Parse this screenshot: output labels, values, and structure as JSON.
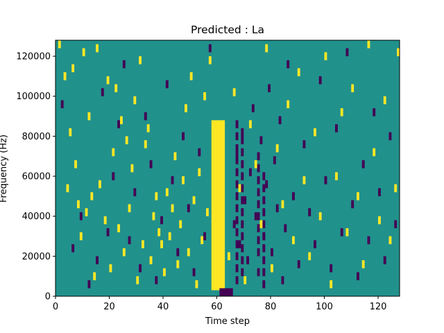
{
  "chart_data": {
    "type": "heatmap",
    "title": "Predicted : La",
    "xlabel": "Time step",
    "ylabel": "Frequency (Hz)",
    "xlim": [
      0,
      128
    ],
    "ylim": [
      0,
      128000
    ],
    "x_ticks": [
      0,
      20,
      40,
      60,
      80,
      100,
      120
    ],
    "y_ticks": [
      0,
      20000,
      40000,
      60000,
      80000,
      100000,
      120000
    ],
    "x_tick_labels": [
      "0",
      "20",
      "40",
      "60",
      "80",
      "100",
      "120"
    ],
    "y_tick_labels": [
      "0",
      "20000",
      "40000",
      "60000",
      "80000",
      "100000",
      "120000"
    ],
    "grid": false,
    "colormap": "viridis",
    "value_levels": [
      -1,
      0,
      1
    ],
    "colors": {
      "low": "#440154",
      "mid": "#21918c",
      "high": "#fde725"
    },
    "background_value": 0,
    "yellow_band": {
      "x_start": 58,
      "x_end": 63,
      "y_start": 3000,
      "y_end": 88000
    },
    "dark_band_bottom": {
      "x_start": 61,
      "x_end": 66,
      "y_start": 0,
      "y_end": 4000
    },
    "scattered_high_cells": [
      [
        1,
        126000
      ],
      [
        3,
        110000
      ],
      [
        4,
        54000
      ],
      [
        5,
        82000
      ],
      [
        6,
        114000
      ],
      [
        7,
        66000
      ],
      [
        8,
        46000
      ],
      [
        9,
        30000
      ],
      [
        10,
        122000
      ],
      [
        11,
        42000
      ],
      [
        12,
        90000
      ],
      [
        13,
        50000
      ],
      [
        14,
        10000
      ],
      [
        15,
        124000
      ],
      [
        16,
        56000
      ],
      [
        18,
        38000
      ],
      [
        19,
        108000
      ],
      [
        20,
        14000
      ],
      [
        21,
        72000
      ],
      [
        22,
        104000
      ],
      [
        23,
        34000
      ],
      [
        24,
        88000
      ],
      [
        25,
        22000
      ],
      [
        26,
        78000
      ],
      [
        27,
        44000
      ],
      [
        28,
        64000
      ],
      [
        29,
        98000
      ],
      [
        30,
        8000
      ],
      [
        31,
        118000
      ],
      [
        32,
        26000
      ],
      [
        33,
        76000
      ],
      [
        34,
        84000
      ],
      [
        35,
        18000
      ],
      [
        36,
        40000
      ],
      [
        37,
        50000
      ],
      [
        38,
        32000
      ],
      [
        39,
        26000
      ],
      [
        40,
        12000
      ],
      [
        41,
        52000
      ],
      [
        42,
        30000
      ],
      [
        43,
        44000
      ],
      [
        44,
        70000
      ],
      [
        45,
        16000
      ],
      [
        46,
        36000
      ],
      [
        47,
        58000
      ],
      [
        48,
        94000
      ],
      [
        49,
        22000
      ],
      [
        50,
        110000
      ],
      [
        51,
        48000
      ],
      [
        52,
        6000
      ],
      [
        53,
        62000
      ],
      [
        54,
        28000
      ],
      [
        55,
        100000
      ],
      [
        56,
        42000
      ],
      [
        57,
        118000
      ],
      [
        64,
        20000
      ],
      [
        66,
        102000
      ],
      [
        68,
        54000
      ],
      [
        70,
        8000
      ],
      [
        72,
        86000
      ],
      [
        74,
        66000
      ],
      [
        76,
        36000
      ],
      [
        78,
        124000
      ],
      [
        80,
        14000
      ],
      [
        82,
        74000
      ],
      [
        84,
        46000
      ],
      [
        86,
        96000
      ],
      [
        88,
        28000
      ],
      [
        90,
        112000
      ],
      [
        92,
        58000
      ],
      [
        94,
        20000
      ],
      [
        96,
        82000
      ],
      [
        98,
        40000
      ],
      [
        100,
        120000
      ],
      [
        102,
        6000
      ],
      [
        104,
        60000
      ],
      [
        106,
        92000
      ],
      [
        108,
        32000
      ],
      [
        110,
        104000
      ],
      [
        112,
        50000
      ],
      [
        114,
        16000
      ],
      [
        116,
        126000
      ],
      [
        118,
        72000
      ],
      [
        120,
        38000
      ],
      [
        122,
        98000
      ],
      [
        124,
        28000
      ],
      [
        126,
        54000
      ],
      [
        127,
        122000
      ]
    ],
    "scattered_low_cells": [
      [
        2,
        96000
      ],
      [
        6,
        24000
      ],
      [
        9,
        40000
      ],
      [
        12,
        6000
      ],
      [
        15,
        18000
      ],
      [
        17,
        102000
      ],
      [
        19,
        32000
      ],
      [
        21,
        60000
      ],
      [
        23,
        86000
      ],
      [
        25,
        116000
      ],
      [
        27,
        28000
      ],
      [
        29,
        52000
      ],
      [
        31,
        14000
      ],
      [
        33,
        90000
      ],
      [
        35,
        66000
      ],
      [
        37,
        8000
      ],
      [
        39,
        38000
      ],
      [
        41,
        106000
      ],
      [
        43,
        58000
      ],
      [
        45,
        22000
      ],
      [
        47,
        80000
      ],
      [
        49,
        44000
      ],
      [
        51,
        12000
      ],
      [
        53,
        72000
      ],
      [
        55,
        30000
      ],
      [
        57,
        124000
      ],
      [
        66,
        36000
      ],
      [
        67,
        70000
      ],
      [
        68,
        26000
      ],
      [
        69,
        82000
      ],
      [
        70,
        48000
      ],
      [
        71,
        18000
      ],
      [
        72,
        62000
      ],
      [
        73,
        94000
      ],
      [
        74,
        40000
      ],
      [
        75,
        12000
      ],
      [
        76,
        78000
      ],
      [
        77,
        30000
      ],
      [
        78,
        56000
      ],
      [
        79,
        104000
      ],
      [
        80,
        22000
      ],
      [
        81,
        68000
      ],
      [
        82,
        44000
      ],
      [
        83,
        88000
      ],
      [
        84,
        8000
      ],
      [
        85,
        34000
      ],
      [
        86,
        116000
      ],
      [
        88,
        50000
      ],
      [
        90,
        16000
      ],
      [
        92,
        76000
      ],
      [
        94,
        42000
      ],
      [
        96,
        26000
      ],
      [
        98,
        108000
      ],
      [
        100,
        58000
      ],
      [
        102,
        14000
      ],
      [
        104,
        84000
      ],
      [
        106,
        32000
      ],
      [
        108,
        122000
      ],
      [
        110,
        46000
      ],
      [
        112,
        10000
      ],
      [
        114,
        66000
      ],
      [
        116,
        28000
      ],
      [
        118,
        92000
      ],
      [
        120,
        52000
      ],
      [
        122,
        18000
      ],
      [
        124,
        80000
      ],
      [
        126,
        36000
      ]
    ],
    "dark_streak_columns": [
      {
        "x": 67,
        "y_start": 6000,
        "y_end": 88000
      },
      {
        "x": 69,
        "y_start": 10000,
        "y_end": 80000
      },
      {
        "x": 75,
        "y_start": 20000,
        "y_end": 72000
      },
      {
        "x": 77,
        "y_start": 4000,
        "y_end": 64000
      }
    ]
  }
}
